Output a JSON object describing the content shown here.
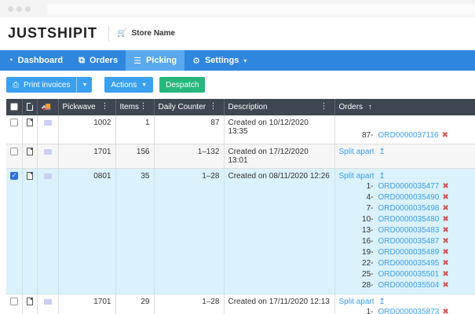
{
  "app": {
    "logo": "JUSTSHIPIT",
    "store_name": "Store Name"
  },
  "nav": [
    {
      "label": "Dashboard",
      "icon": "dashboard-icon"
    },
    {
      "label": "Orders",
      "icon": "orders-icon"
    },
    {
      "label": "Picking",
      "icon": "list-icon",
      "active": true
    },
    {
      "label": "Settings",
      "icon": "gear-icon",
      "caret": "▾"
    }
  ],
  "toolbar": {
    "print": "Print invoices",
    "actions": "Actions",
    "despatch": "Despatch"
  },
  "table": {
    "headers": {
      "pickwave": "Pickwave",
      "items": "Items",
      "counter": "Daily Counter",
      "description": "Description",
      "orders": "Orders",
      "orders_sort": "↑"
    },
    "split": "Split apart",
    "split_icon": "↥",
    "rows": [
      {
        "pickwave": "1002",
        "items": "1",
        "counter": "87",
        "description": "Created on 10/12/2020 13:35",
        "split": false,
        "checked": false,
        "style": "white",
        "orders": [
          {
            "n": "87-",
            "id": "ORD0000037116"
          }
        ]
      },
      {
        "pickwave": "1701",
        "items": "156",
        "counter": "1–132",
        "description": "Created on 17/12/2020 13:01",
        "split": true,
        "checked": false,
        "style": "grey",
        "orders": []
      },
      {
        "pickwave": "0801",
        "items": "35",
        "counter": "1–28",
        "description": "Created on 08/11/2020 12:26",
        "split": true,
        "checked": true,
        "style": "sel",
        "orders": [
          {
            "n": "1-",
            "id": "ORD0000035477"
          },
          {
            "n": "4-",
            "id": "ORD0000035490"
          },
          {
            "n": "7-",
            "id": "ORD0000035498"
          },
          {
            "n": "10-",
            "id": "ORD0000035480"
          },
          {
            "n": "13-",
            "id": "ORD0000035483"
          },
          {
            "n": "16-",
            "id": "ORD0000035487"
          },
          {
            "n": "19-",
            "id": "ORD0000035489"
          },
          {
            "n": "22-",
            "id": "ORD0000035495"
          },
          {
            "n": "25-",
            "id": "ORD0000035501"
          },
          {
            "n": "28-",
            "id": "ORD0000035504"
          }
        ]
      },
      {
        "pickwave": "1701",
        "items": "29",
        "counter": "1–28",
        "description": "Created on 17/11/2020 12:13",
        "split": true,
        "checked": false,
        "style": "white",
        "orders": [
          {
            "n": "1-",
            "id": "ORD0000035873"
          }
        ]
      }
    ]
  }
}
